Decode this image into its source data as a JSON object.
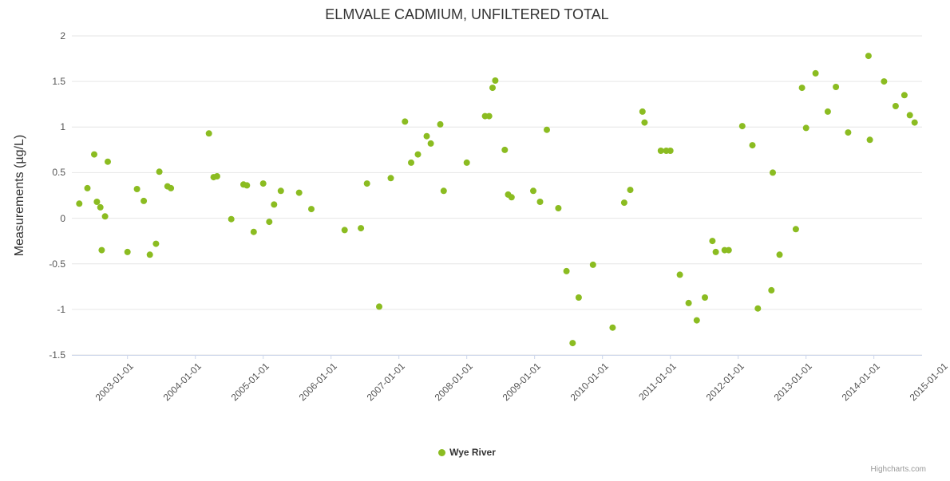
{
  "credits": "Highcharts.com",
  "colors": {
    "point": "#8bbc21",
    "grid": "#e6e6e6",
    "axis_line": "#ccd6eb",
    "label": "#555555",
    "title": "#333333",
    "credits": "#999999"
  },
  "chart_data": {
    "type": "scatter",
    "title": "ELMVALE CADMIUM, UNFILTERED TOTAL",
    "xlabel": "",
    "ylabel": "Measurements (µg/L)",
    "xlim": [
      2002.18,
      2014.71
    ],
    "ylim": [
      -1.5,
      2
    ],
    "grid": "horizontal",
    "legend_position": "bottom-center",
    "x_ticks": [
      {
        "value": 2003,
        "label": "2003-01-01"
      },
      {
        "value": 2004,
        "label": "2004-01-01"
      },
      {
        "value": 2005,
        "label": "2005-01-01"
      },
      {
        "value": 2006,
        "label": "2006-01-01"
      },
      {
        "value": 2007,
        "label": "2007-01-01"
      },
      {
        "value": 2008,
        "label": "2008-01-01"
      },
      {
        "value": 2009,
        "label": "2009-01-01"
      },
      {
        "value": 2010,
        "label": "2010-01-01"
      },
      {
        "value": 2011,
        "label": "2011-01-01"
      },
      {
        "value": 2012,
        "label": "2012-01-01"
      },
      {
        "value": 2013,
        "label": "2013-01-01"
      },
      {
        "value": 2014,
        "label": "2014-01-01"
      },
      {
        "value": 2015,
        "label": "2015-01-01"
      }
    ],
    "y_ticks": [
      {
        "value": -1.5,
        "label": "-1.5"
      },
      {
        "value": -1,
        "label": "-1"
      },
      {
        "value": -0.5,
        "label": "-0.5"
      },
      {
        "value": 0,
        "label": "0"
      },
      {
        "value": 0.5,
        "label": "0.5"
      },
      {
        "value": 1,
        "label": "1"
      },
      {
        "value": 1.5,
        "label": "1.5"
      },
      {
        "value": 2,
        "label": "2"
      }
    ],
    "series": [
      {
        "name": "Wye River",
        "color": "#8bbc21",
        "points": [
          [
            2002.29,
            0.16
          ],
          [
            2002.41,
            0.33
          ],
          [
            2002.51,
            0.7
          ],
          [
            2002.55,
            0.18
          ],
          [
            2002.6,
            0.12
          ],
          [
            2002.62,
            -0.35
          ],
          [
            2002.67,
            0.02
          ],
          [
            2002.71,
            0.62
          ],
          [
            2003.0,
            -0.37
          ],
          [
            2003.14,
            0.32
          ],
          [
            2003.24,
            0.19
          ],
          [
            2003.33,
            -0.4
          ],
          [
            2003.42,
            -0.28
          ],
          [
            2003.47,
            0.51
          ],
          [
            2003.59,
            0.35
          ],
          [
            2003.64,
            0.33
          ],
          [
            2004.2,
            0.93
          ],
          [
            2004.27,
            0.45
          ],
          [
            2004.32,
            0.46
          ],
          [
            2004.53,
            -0.01
          ],
          [
            2004.71,
            0.37
          ],
          [
            2004.76,
            0.36
          ],
          [
            2004.86,
            -0.15
          ],
          [
            2005.0,
            0.38
          ],
          [
            2005.09,
            -0.04
          ],
          [
            2005.16,
            0.15
          ],
          [
            2005.26,
            0.3
          ],
          [
            2005.53,
            0.28
          ],
          [
            2005.71,
            0.1
          ],
          [
            2006.2,
            -0.13
          ],
          [
            2006.44,
            -0.11
          ],
          [
            2006.53,
            0.38
          ],
          [
            2006.71,
            -0.97
          ],
          [
            2006.88,
            0.44
          ],
          [
            2007.09,
            1.06
          ],
          [
            2007.18,
            0.61
          ],
          [
            2007.28,
            0.7
          ],
          [
            2007.41,
            0.9
          ],
          [
            2007.47,
            0.82
          ],
          [
            2007.61,
            1.03
          ],
          [
            2007.66,
            0.3
          ],
          [
            2008.0,
            0.61
          ],
          [
            2008.27,
            1.12
          ],
          [
            2008.33,
            1.12
          ],
          [
            2008.38,
            1.43
          ],
          [
            2008.42,
            1.51
          ],
          [
            2008.56,
            0.75
          ],
          [
            2008.61,
            0.26
          ],
          [
            2008.66,
            0.23
          ],
          [
            2008.98,
            0.3
          ],
          [
            2009.08,
            0.18
          ],
          [
            2009.18,
            0.97
          ],
          [
            2009.35,
            0.11
          ],
          [
            2009.47,
            -0.58
          ],
          [
            2009.56,
            -1.37
          ],
          [
            2009.65,
            -0.87
          ],
          [
            2009.86,
            -0.51
          ],
          [
            2010.15,
            -1.2
          ],
          [
            2010.32,
            0.17
          ],
          [
            2010.41,
            0.31
          ],
          [
            2010.59,
            1.17
          ],
          [
            2010.62,
            1.05
          ],
          [
            2010.86,
            0.74
          ],
          [
            2010.94,
            0.74
          ],
          [
            2011.0,
            0.74
          ],
          [
            2011.14,
            -0.62
          ],
          [
            2011.27,
            -0.93
          ],
          [
            2011.39,
            -1.12
          ],
          [
            2011.51,
            -0.87
          ],
          [
            2011.62,
            -0.25
          ],
          [
            2011.67,
            -0.37
          ],
          [
            2011.8,
            -0.35
          ],
          [
            2011.86,
            -0.35
          ],
          [
            2012.06,
            1.01
          ],
          [
            2012.21,
            0.8
          ],
          [
            2012.29,
            -0.99
          ],
          [
            2012.49,
            -0.79
          ],
          [
            2012.51,
            0.5
          ],
          [
            2012.61,
            -0.4
          ],
          [
            2012.85,
            -0.12
          ],
          [
            2012.94,
            1.43
          ],
          [
            2013.0,
            0.99
          ],
          [
            2013.14,
            1.59
          ],
          [
            2013.32,
            1.17
          ],
          [
            2013.44,
            1.44
          ],
          [
            2013.62,
            0.94
          ],
          [
            2013.92,
            1.78
          ],
          [
            2013.94,
            0.86
          ],
          [
            2014.15,
            1.5
          ],
          [
            2014.32,
            1.23
          ],
          [
            2014.45,
            1.35
          ],
          [
            2014.53,
            1.13
          ],
          [
            2014.6,
            1.05
          ]
        ]
      }
    ]
  }
}
